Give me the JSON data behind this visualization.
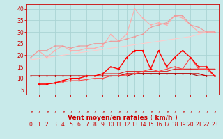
{
  "background_color": "#c8eaea",
  "grid_color": "#aad4d4",
  "xlabel": "Vent moyen/en rafales ( km/h )",
  "xlabel_color": "#cc0000",
  "xlabel_fontsize": 6.5,
  "tick_color": "#cc0000",
  "tick_fontsize": 5.5,
  "ylim": [
    3,
    42
  ],
  "xlim": [
    -0.5,
    23.5
  ],
  "yticks": [
    5,
    10,
    15,
    20,
    25,
    30,
    35,
    40
  ],
  "xticks": [
    0,
    1,
    2,
    3,
    4,
    5,
    6,
    7,
    8,
    9,
    10,
    11,
    12,
    13,
    14,
    15,
    16,
    17,
    18,
    19,
    20,
    21,
    22,
    23
  ],
  "lines": [
    {
      "x": [
        0,
        1,
        2,
        3,
        4,
        5,
        6,
        7,
        8,
        9,
        10,
        11,
        12,
        13,
        14,
        15,
        16,
        17,
        18,
        19,
        20,
        21,
        22,
        23
      ],
      "y": [
        19,
        22,
        19,
        22,
        24,
        22,
        22,
        23,
        23,
        24,
        29,
        26,
        29,
        40,
        36,
        33,
        34,
        33,
        37,
        36,
        33,
        30,
        30,
        30
      ],
      "color": "#ffaaaa",
      "lw": 0.8,
      "marker": "D",
      "ms": 1.5,
      "zorder": 3
    },
    {
      "x": [
        0,
        1,
        2,
        3,
        4,
        5,
        6,
        7,
        8,
        9,
        10,
        11,
        12,
        13,
        14,
        15,
        16,
        17,
        18,
        19,
        20,
        21,
        22,
        23
      ],
      "y": [
        18,
        18.5,
        19,
        19.5,
        20,
        20.5,
        21,
        21.5,
        22,
        22.5,
        23,
        23.5,
        24,
        24.5,
        25,
        25.5,
        26,
        26.5,
        27,
        27.5,
        28,
        29,
        30,
        30
      ],
      "color": "#ffcccc",
      "lw": 0.8,
      "marker": null,
      "ms": 0,
      "zorder": 2
    },
    {
      "x": [
        0,
        1,
        2,
        3,
        4,
        5,
        6,
        7,
        8,
        9,
        10,
        11,
        12,
        13,
        14,
        15,
        16,
        17,
        18,
        19,
        20,
        21,
        22,
        23
      ],
      "y": [
        19,
        22,
        22,
        24,
        24,
        23,
        24,
        24,
        25,
        25,
        26,
        26,
        27,
        28,
        29,
        32,
        33,
        34,
        37,
        37,
        33,
        32,
        30,
        30
      ],
      "color": "#ee9999",
      "lw": 0.8,
      "marker": "D",
      "ms": 1.5,
      "zorder": 3
    },
    {
      "x": [
        0,
        1,
        2,
        3,
        4,
        5,
        6,
        7,
        8,
        9,
        10,
        11,
        12,
        13,
        14,
        15,
        16,
        17,
        18,
        19,
        20,
        21,
        22,
        23
      ],
      "y": [
        11,
        11,
        11,
        11,
        11,
        11,
        11,
        11,
        11,
        11,
        11,
        11,
        12,
        12,
        12,
        12,
        12,
        12,
        12,
        12,
        12,
        12,
        11,
        11
      ],
      "color": "#cc0000",
      "lw": 1.0,
      "marker": "D",
      "ms": 1.5,
      "zorder": 4
    },
    {
      "x": [
        0,
        1,
        2,
        3,
        4,
        5,
        6,
        7,
        8,
        9,
        10,
        11,
        12,
        13,
        14,
        15,
        16,
        17,
        18,
        19,
        20,
        21,
        22,
        23
      ],
      "y": [
        11,
        11,
        11,
        11,
        11,
        11,
        11,
        11,
        11,
        12,
        12,
        12,
        13,
        13,
        13,
        13,
        13,
        13,
        14,
        14,
        14,
        14,
        14,
        14
      ],
      "color": "#dd2222",
      "lw": 0.8,
      "marker": "D",
      "ms": 1.2,
      "zorder": 4
    },
    {
      "x": [
        0,
        1,
        2,
        3,
        4,
        5,
        6,
        7,
        8,
        9,
        10,
        11,
        12,
        13,
        14,
        15,
        16,
        17,
        18,
        19,
        20,
        21,
        22,
        23
      ],
      "y": [
        11,
        11,
        11,
        11,
        11,
        11,
        11,
        11,
        11,
        11,
        11,
        11,
        11,
        12,
        12,
        12,
        12,
        12,
        12,
        12,
        12,
        11,
        11,
        11
      ],
      "color": "#aa0000",
      "lw": 0.8,
      "marker": "D",
      "ms": 1.2,
      "zorder": 4
    },
    {
      "x": [
        1,
        2,
        3,
        4,
        5,
        6,
        7,
        8,
        9,
        10,
        11,
        12,
        13,
        14,
        15,
        16,
        17,
        18,
        19,
        20,
        21,
        22,
        23
      ],
      "y": [
        7.5,
        7.5,
        8,
        8.5,
        9,
        9,
        9.5,
        10,
        10,
        11,
        11,
        11.5,
        12,
        13,
        14,
        13,
        14,
        15,
        14,
        19,
        14,
        14,
        11
      ],
      "color": "#ff4444",
      "lw": 0.8,
      "marker": "D",
      "ms": 1.5,
      "zorder": 5
    },
    {
      "x": [
        1,
        2,
        3,
        4,
        5,
        6,
        7,
        8,
        9,
        10,
        11,
        12,
        13,
        14,
        15,
        16,
        17,
        18,
        19,
        20,
        21,
        22,
        23
      ],
      "y": [
        7.5,
        7.5,
        8,
        9,
        10,
        10,
        11,
        11,
        12,
        15,
        14,
        19,
        22,
        22,
        14,
        22,
        15,
        19,
        22,
        19,
        15,
        15,
        11
      ],
      "color": "#ff0000",
      "lw": 1.0,
      "marker": "D",
      "ms": 2.0,
      "zorder": 6
    }
  ]
}
